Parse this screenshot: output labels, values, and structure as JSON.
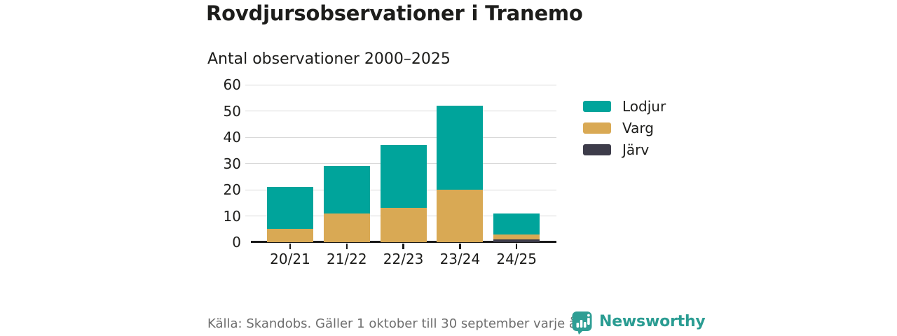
{
  "header": {
    "title": "Rovdjursobservationer i Tranemo",
    "subtitle": "Antal observationer 2000–2025"
  },
  "chart_data": {
    "type": "bar",
    "stacked": true,
    "title": "Rovdjursobservationer i Tranemo",
    "subtitle": "Antal observationer 2000–2025",
    "categories": [
      "20/21",
      "21/22",
      "22/23",
      "23/24",
      "24/25"
    ],
    "series": [
      {
        "name": "Lodjur",
        "color": "#00a49b",
        "values": [
          16,
          18,
          24,
          32,
          8
        ]
      },
      {
        "name": "Varg",
        "color": "#d9a954",
        "values": [
          5,
          11,
          13,
          20,
          2
        ]
      },
      {
        "name": "Järv",
        "color": "#3d3c4a",
        "values": [
          0,
          0,
          0,
          0,
          1
        ]
      }
    ],
    "stack_order_bottom_to_top": [
      "Järv",
      "Varg",
      "Lodjur"
    ],
    "xlabel": "",
    "ylabel": "",
    "ylim": [
      0,
      60
    ],
    "yticks": [
      0,
      10,
      20,
      30,
      40,
      50,
      60
    ],
    "grid": true,
    "legend_position": "right"
  },
  "footer": {
    "source": "Källa: Skandobs. Gäller 1 oktober till 30 september varje år.",
    "brand": "Newsworthy",
    "brand_color": "#2a9c92"
  }
}
